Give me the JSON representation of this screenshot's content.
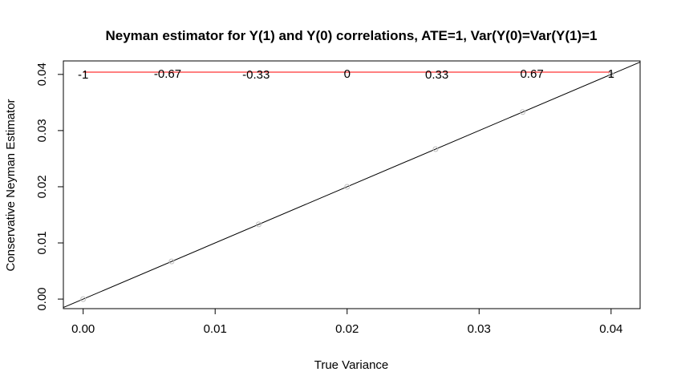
{
  "chart_data": {
    "type": "scatter",
    "title": "Neyman estimator for  Y(1) and Y(0) correlations, ATE=1, Var(Y(0)=Var(Y(1)=1",
    "xlabel": "True Variance",
    "ylabel": "Conservative Neyman Estimator",
    "xlim": [
      -0.0015,
      0.0422
    ],
    "ylim": [
      -0.0017,
      0.0424
    ],
    "x_ticks": [
      0.0,
      0.01,
      0.02,
      0.03,
      0.04
    ],
    "x_tick_labels": [
      "0.00",
      "0.01",
      "0.02",
      "0.03",
      "0.04"
    ],
    "y_ticks": [
      0.0,
      0.01,
      0.02,
      0.03,
      0.04
    ],
    "y_tick_labels": [
      "0.00",
      "0.01",
      "0.02",
      "0.03",
      "0.04"
    ],
    "grid": false,
    "points": {
      "x": [
        0.0,
        0.0067,
        0.0133,
        0.02,
        0.0267,
        0.0333,
        0.04
      ],
      "y": [
        0.0,
        0.0067,
        0.0133,
        0.02,
        0.0267,
        0.0333,
        0.04
      ],
      "color": "#bfbfbf"
    },
    "reference_line": {
      "intercept": 0,
      "slope": 1,
      "color": "#000000"
    },
    "hline": {
      "y": 0.0404,
      "x_from": 0.0,
      "x_to": 0.04,
      "color": "#ff0000"
    },
    "annotations": [
      {
        "text": "-1",
        "x": 0.0,
        "y": 0.04
      },
      {
        "text": "-0.67",
        "x": 0.0064,
        "y": 0.0401
      },
      {
        "text": "-0.33",
        "x": 0.0131,
        "y": 0.04
      },
      {
        "text": "0",
        "x": 0.02,
        "y": 0.0401
      },
      {
        "text": "0.33",
        "x": 0.0268,
        "y": 0.04
      },
      {
        "text": "0.67",
        "x": 0.034,
        "y": 0.0401
      },
      {
        "text": "1",
        "x": 0.04,
        "y": 0.0401
      }
    ]
  }
}
